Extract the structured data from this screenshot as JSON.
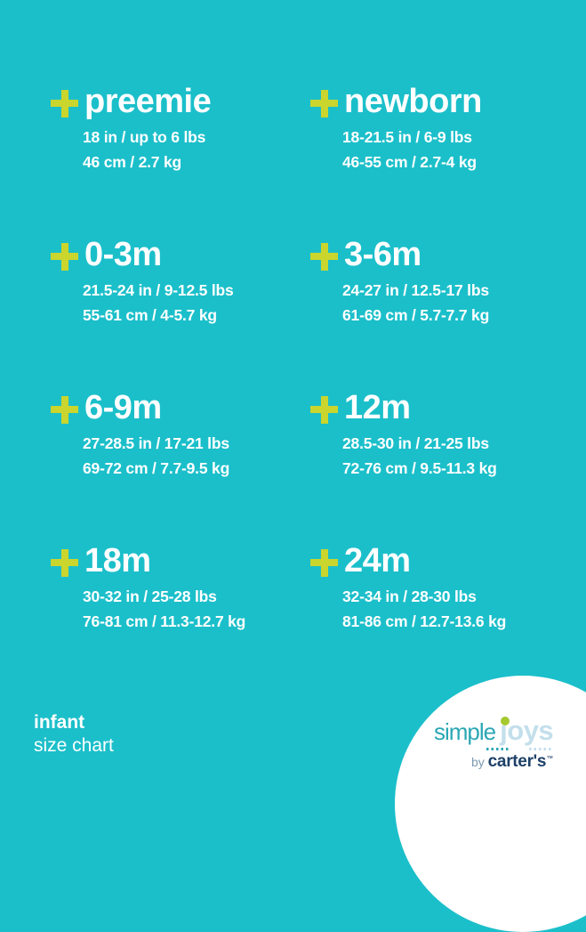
{
  "title": "infant size chart",
  "sizes": [
    {
      "label": "preemie",
      "imperial": "18 in / up to 6 lbs",
      "metric": "46 cm / 2.7 kg"
    },
    {
      "label": "newborn",
      "imperial": "18-21.5 in / 6-9 lbs",
      "metric": "46-55 cm / 2.7-4 kg"
    },
    {
      "label": "0-3m",
      "imperial": "21.5-24 in / 9-12.5 lbs",
      "metric": "55-61 cm / 4-5.7 kg"
    },
    {
      "label": "3-6m",
      "imperial": "24-27 in / 12.5-17 lbs",
      "metric": "61-69 cm / 5.7-7.7 kg"
    },
    {
      "label": "6-9m",
      "imperial": "27-28.5 in / 17-21 lbs",
      "metric": "69-72 cm / 7.7-9.5 kg"
    },
    {
      "label": "12m",
      "imperial": "28.5-30 in / 21-25 lbs",
      "metric": "72-76 cm / 9.5-11.3 kg"
    },
    {
      "label": "18m",
      "imperial": "30-32 in / 25-28 lbs",
      "metric": "76-81 cm / 11.3-12.7 kg"
    },
    {
      "label": "24m",
      "imperial": "32-34 in / 28-30 lbs",
      "metric": "81-86 cm / 12.7-13.6 kg"
    }
  ],
  "footer": {
    "title": "infant",
    "subtitle": "size chart"
  },
  "logo": {
    "word1": "simple",
    "word2": "joys",
    "by": "by ",
    "brand": "carter's",
    "trademark": "™"
  },
  "icons": {
    "size_marker": "plus-cross (lime CSS cross)",
    "j_dot": "green circle over letter j",
    "dotted_dividers": "two short dotted rules under logo word joys"
  },
  "colors": {
    "background_teal": "#1bbfca",
    "text_white": "#ffffff",
    "plus_lime": "#cad52d",
    "logo_circle_white": "#ffffff",
    "logo_simple_teal": "#2ba7b5",
    "logo_joys_pale_blue": "#c3dfec",
    "logo_jdot_green": "#a5c92f",
    "logo_by_gray_blue": "#7e9bb0",
    "logo_carters_navy": "#1d4067"
  },
  "chart_data": {
    "type": "table",
    "title": "infant size chart",
    "columns": [
      "size",
      "length_in",
      "weight_lbs",
      "length_cm",
      "weight_kg"
    ],
    "rows": [
      [
        "preemie",
        "18",
        "up to 6",
        "46",
        "2.7"
      ],
      [
        "newborn",
        "18-21.5",
        "6-9",
        "46-55",
        "2.7-4"
      ],
      [
        "0-3m",
        "21.5-24",
        "9-12.5",
        "55-61",
        "4-5.7"
      ],
      [
        "3-6m",
        "24-27",
        "12.5-17",
        "61-69",
        "5.7-7.7"
      ],
      [
        "6-9m",
        "27-28.5",
        "17-21",
        "69-72",
        "7.7-9.5"
      ],
      [
        "12m",
        "28.5-30",
        "21-25",
        "72-76",
        "9.5-11.3"
      ],
      [
        "18m",
        "30-32",
        "25-28",
        "76-81",
        "11.3-12.7"
      ],
      [
        "24m",
        "32-34",
        "28-30",
        "81-86",
        "12.7-13.6"
      ]
    ],
    "layout": "2-column by 4-row grid of size entries, footer label bottom-left, brand logo in white quarter-circle bottom-right"
  }
}
